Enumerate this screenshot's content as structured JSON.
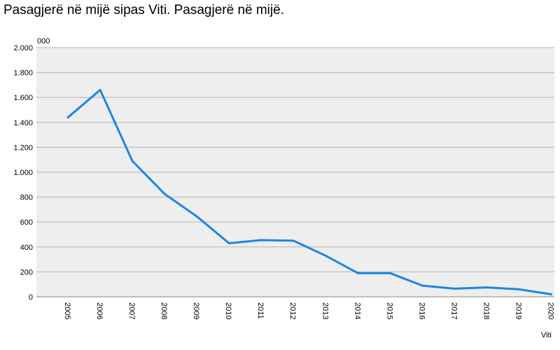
{
  "title": "Pasagjerë në mijë sipas Viti. Pasagjerë në mijë.",
  "chart_data": {
    "type": "line",
    "title": "Pasagjerë në mijë sipas Viti. Pasagjerë në mijë.",
    "xlabel": "Viti",
    "ylabel": "",
    "y_unit_label": "000",
    "categories": [
      "2005",
      "2006",
      "2007",
      "2008",
      "2009",
      "2010",
      "2011",
      "2012",
      "2013",
      "2014",
      "2015",
      "2016",
      "2017",
      "2018",
      "2019",
      "2020"
    ],
    "series": [
      {
        "values": [
          1440,
          1660,
          1090,
          825,
          645,
          430,
          455,
          450,
          330,
          190,
          190,
          90,
          65,
          75,
          60,
          20
        ],
        "color": "#1a86e6"
      }
    ],
    "ylim": [
      0,
      2000
    ],
    "yticks": [
      0,
      200,
      400,
      600,
      800,
      1000,
      1200,
      1400,
      1600,
      1800,
      2000
    ],
    "ytick_labels": [
      "0",
      "200",
      "400",
      "600",
      "800",
      "1.000",
      "1.200",
      "1.400",
      "1.600",
      "1.800",
      "2.000"
    ],
    "grid": true,
    "plot_background": "#eeeeee",
    "grid_color": "#b4b4b4",
    "legend": "none"
  }
}
